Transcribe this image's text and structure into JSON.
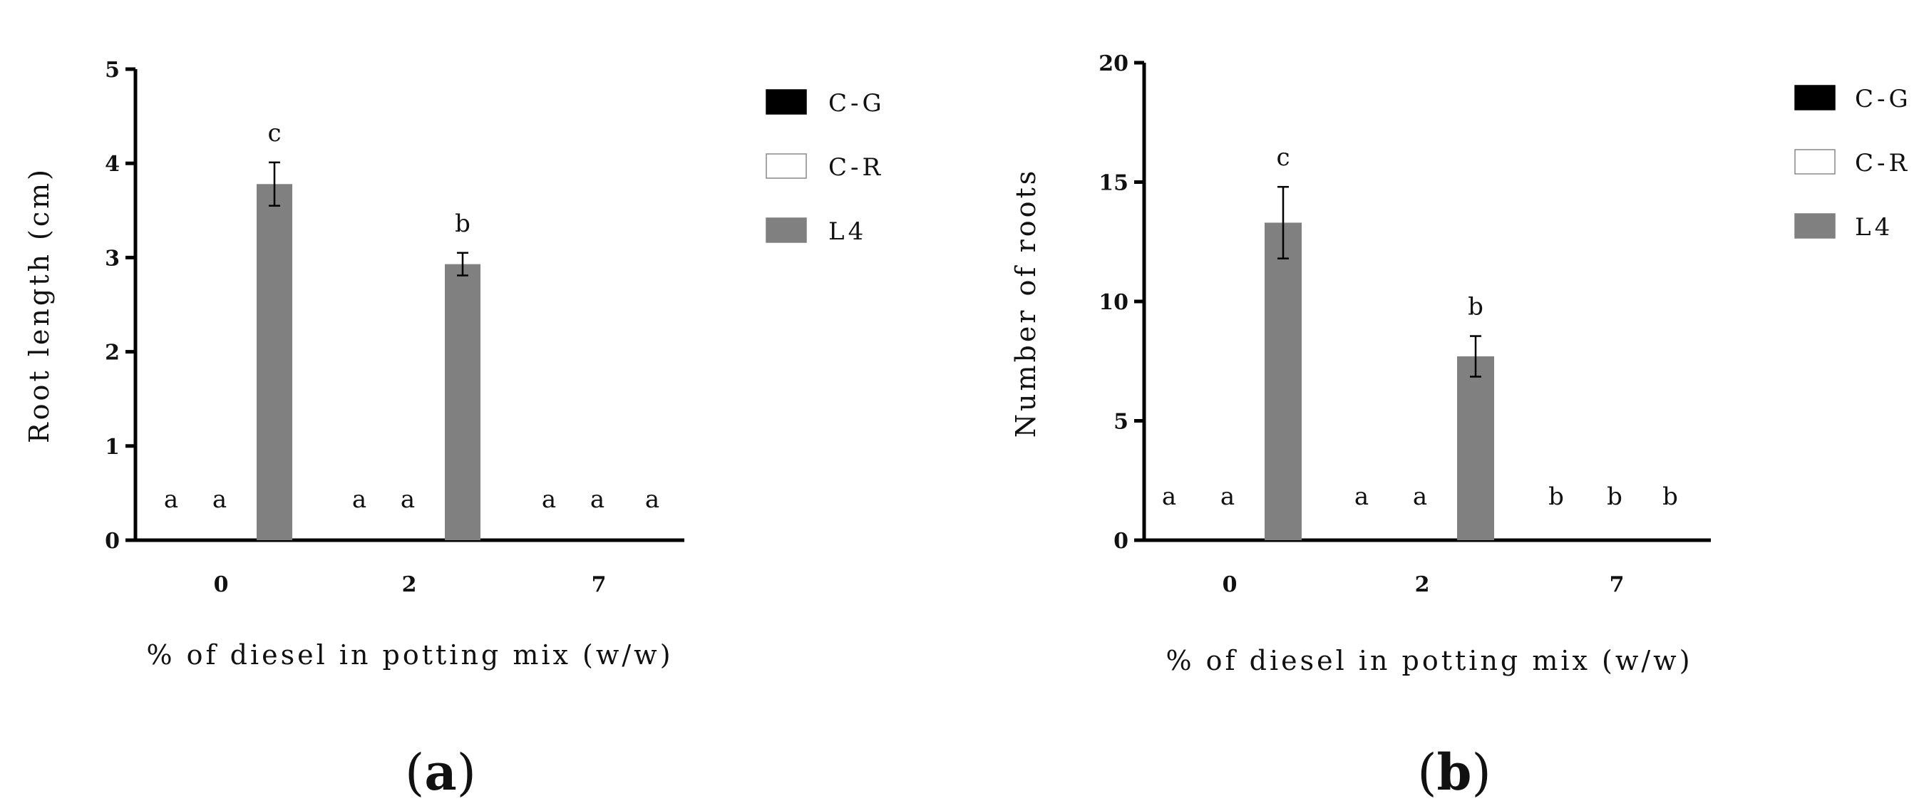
{
  "chart_data": [
    {
      "type": "bar",
      "panel_label": {
        "open": "(",
        "letter": "a",
        "close": ")"
      },
      "xlabel": "% of diesel in potting mix (w/w)",
      "ylabel": "Root length (cm)",
      "categories": [
        "0",
        "2",
        "7"
      ],
      "ylim": [
        0,
        5
      ],
      "yticks": [
        "0",
        "1",
        "2",
        "3",
        "4",
        "5"
      ],
      "grid": false,
      "legend_position": "right",
      "series": [
        {
          "name": "C-G",
          "color": "#000000",
          "values": [
            0,
            0,
            0
          ],
          "errors": [
            0,
            0,
            0
          ],
          "letters": [
            "a",
            "a",
            "a"
          ]
        },
        {
          "name": "C-R",
          "color": "#ffffff",
          "values": [
            0,
            0,
            0
          ],
          "errors": [
            0,
            0,
            0
          ],
          "letters": [
            "a",
            "a",
            "a"
          ]
        },
        {
          "name": "L4",
          "color": "#808080",
          "values": [
            3.78,
            2.93,
            0
          ],
          "errors": [
            0.23,
            0.12,
            0
          ],
          "letters": [
            "c",
            "b",
            "a"
          ]
        }
      ]
    },
    {
      "type": "bar",
      "panel_label": {
        "open": "(",
        "letter": "b",
        "close": ")"
      },
      "xlabel": "% of diesel in potting mix (w/w)",
      "ylabel": "Number of roots",
      "categories": [
        "0",
        "2",
        "7"
      ],
      "ylim": [
        0,
        20
      ],
      "yticks": [
        "0",
        "5",
        "10",
        "15",
        "20"
      ],
      "grid": false,
      "legend_position": "right",
      "series": [
        {
          "name": "C-G",
          "color": "#000000",
          "values": [
            0,
            0,
            0
          ],
          "errors": [
            0,
            0,
            0
          ],
          "letters": [
            "a",
            "a",
            "b"
          ]
        },
        {
          "name": "C-R",
          "color": "#ffffff",
          "values": [
            0,
            0,
            0
          ],
          "errors": [
            0,
            0,
            0
          ],
          "letters": [
            "a",
            "a",
            "b"
          ]
        },
        {
          "name": "L4",
          "color": "#808080",
          "values": [
            13.3,
            7.7,
            0
          ],
          "errors": [
            1.5,
            0.85,
            0
          ],
          "letters": [
            "c",
            "b",
            "b"
          ]
        }
      ]
    }
  ]
}
